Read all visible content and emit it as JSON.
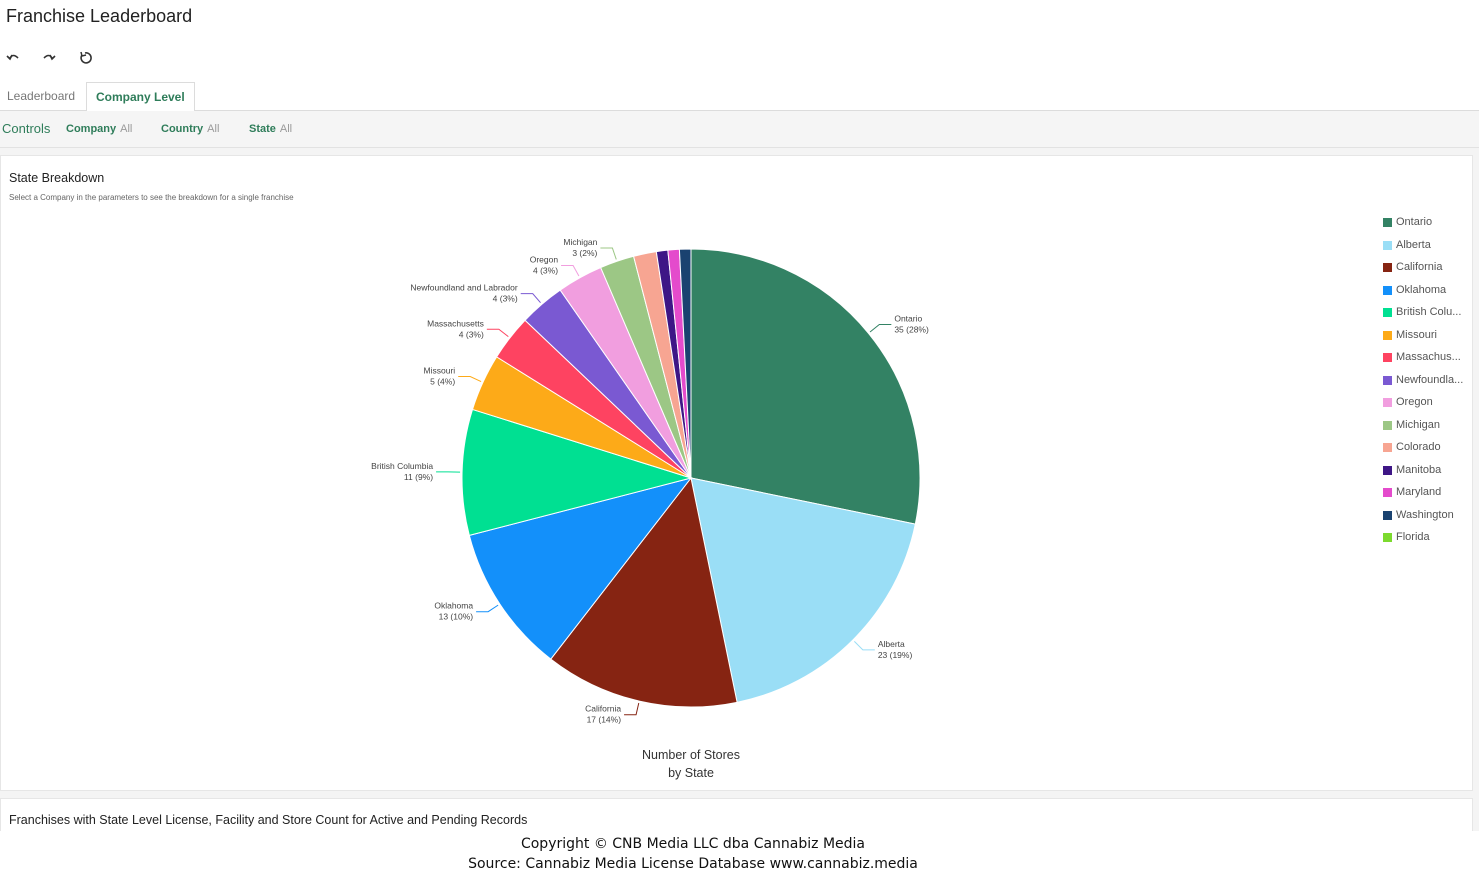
{
  "app": {
    "title": "Franchise Leaderboard"
  },
  "toolbar": {
    "undo_icon": "undo-icon",
    "redo_icon": "redo-icon",
    "reset_icon": "reset-icon"
  },
  "tabs": [
    {
      "label": "Leaderboard"
    },
    {
      "label": "Company Level"
    }
  ],
  "controls": {
    "label": "Controls",
    "filters": [
      {
        "name": "Company",
        "value": "All"
      },
      {
        "name": "Country",
        "value": "All"
      },
      {
        "name": "State",
        "value": "All"
      }
    ]
  },
  "card": {
    "title": "State Breakdown",
    "subtitle": "Select a Company in the parameters to see the breakdown for a single franchise"
  },
  "chart_data": {
    "type": "pie",
    "title_lines": [
      "Number of Stores",
      "by State"
    ],
    "legend_position": "right",
    "slices": [
      {
        "name": "Ontario",
        "legend": "Ontario",
        "value": 35,
        "pct": "28%",
        "color": "#338264"
      },
      {
        "name": "Alberta",
        "legend": "Alberta",
        "value": 23,
        "pct": "19%",
        "color": "#9ADEF6"
      },
      {
        "name": "California",
        "legend": "California",
        "value": 17,
        "pct": "14%",
        "color": "#862412"
      },
      {
        "name": "Oklahoma",
        "legend": "Oklahoma",
        "value": 13,
        "pct": "10%",
        "color": "#1390FA"
      },
      {
        "name": "British Columbia",
        "legend": "British Colu...",
        "value": 11,
        "pct": "9%",
        "color": "#00E092"
      },
      {
        "name": "Missouri",
        "legend": "Missouri",
        "value": 5,
        "pct": "4%",
        "color": "#FDAA18"
      },
      {
        "name": "Massachusetts",
        "legend": "Massachus...",
        "value": 4,
        "pct": "3%",
        "color": "#FE4361"
      },
      {
        "name": "Newfoundland and Labrador",
        "legend": "Newfoundla...",
        "value": 4,
        "pct": "3%",
        "color": "#7A59D2"
      },
      {
        "name": "Oregon",
        "legend": "Oregon",
        "value": 4,
        "pct": "3%",
        "color": "#F19EDF"
      },
      {
        "name": "Michigan",
        "legend": "Michigan",
        "value": 3,
        "pct": "2%",
        "color": "#9CC785"
      },
      {
        "name": "Colorado",
        "legend": "Colorado",
        "value": 2,
        "pct": "",
        "color": "#F7A592"
      },
      {
        "name": "Manitoba",
        "legend": "Manitoba",
        "value": 1,
        "pct": "",
        "color": "#3E1686"
      },
      {
        "name": "Maryland",
        "legend": "Maryland",
        "value": 1,
        "pct": "",
        "color": "#E44BCC"
      },
      {
        "name": "Washington",
        "legend": "Washington",
        "value": 1,
        "pct": "",
        "color": "#1A4270"
      },
      {
        "name": "Florida",
        "legend": "Florida",
        "value": 0,
        "pct": "",
        "color": "#7CDA2E"
      }
    ]
  },
  "card2": {
    "title": "Franchises with State Level License, Facility and Store Count for Active and Pending Records"
  },
  "footer": {
    "line1": "Copyright © CNB Media LLC dba Cannabiz Media",
    "line2": "Source: Cannabiz Media License Database www.cannabiz.media"
  }
}
